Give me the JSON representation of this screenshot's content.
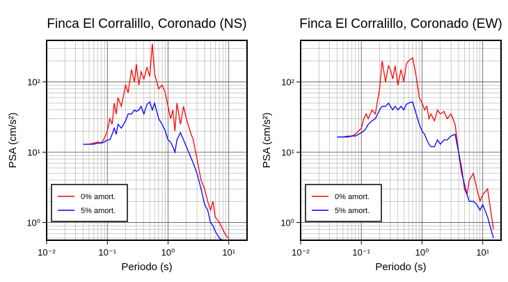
{
  "chart_data": [
    {
      "type": "line",
      "title": "Finca El Corralillo, Coronado (NS)",
      "x_label": "Periodo (s)",
      "y_label": "PSA (cm/s²)",
      "x_scale": "log",
      "y_scale": "log",
      "grid": true,
      "minor_grid": true,
      "legend": "lower left",
      "xlim": [
        0.01,
        20
      ],
      "ylim": [
        0.56,
        390
      ],
      "xticks": [
        {
          "value": 0.01,
          "label": "10⁻²"
        },
        {
          "value": 0.1,
          "label": "10⁻¹"
        },
        {
          "value": 1,
          "label": "10⁰"
        },
        {
          "value": 10,
          "label": "10¹"
        }
      ],
      "yticks": [
        {
          "value": 1,
          "label": "10⁰"
        },
        {
          "value": 10,
          "label": "10¹"
        },
        {
          "value": 100,
          "label": "10²"
        }
      ],
      "x": [
        0.04,
        0.05,
        0.06,
        0.07,
        0.08,
        0.09,
        0.1,
        0.11,
        0.12,
        0.13,
        0.14,
        0.15,
        0.17,
        0.2,
        0.22,
        0.25,
        0.28,
        0.3,
        0.33,
        0.36,
        0.4,
        0.45,
        0.5,
        0.55,
        0.6,
        0.7,
        0.8,
        0.9,
        1.0,
        1.1,
        1.2,
        1.3,
        1.4,
        1.6,
        1.8,
        2.0,
        2.3,
        2.6,
        3.0,
        3.5,
        4,
        4.5,
        5,
        5.5,
        6,
        7,
        8,
        9,
        10
      ],
      "series": [
        {
          "name": "0% amort.",
          "color": "#ff0000",
          "values": [
            13,
            13,
            13.5,
            14,
            13.5,
            16,
            20,
            30,
            25,
            50,
            35,
            60,
            45,
            90,
            70,
            150,
            100,
            180,
            90,
            140,
            110,
            160,
            120,
            350,
            130,
            80,
            90,
            70,
            45,
            30,
            40,
            20,
            50,
            25,
            45,
            30,
            20,
            15,
            8,
            4,
            3,
            2,
            1.5,
            2,
            1.2,
            1,
            0.8,
            0.65,
            0.6
          ]
        },
        {
          "name": "5% amort.",
          "color": "#0000ff",
          "values": [
            13,
            13,
            13,
            13.5,
            13.5,
            14,
            15,
            15,
            18,
            22,
            18,
            25,
            22,
            28,
            35,
            35,
            40,
            38,
            40,
            45,
            35,
            48,
            52,
            40,
            50,
            30,
            25,
            20,
            15,
            14,
            12,
            10,
            15,
            19,
            15,
            12,
            9,
            7,
            5,
            3,
            1.8,
            1.5,
            1.0,
            0.9,
            0.75,
            0.6,
            0.55,
            0.5,
            0.5
          ]
        }
      ]
    },
    {
      "type": "line",
      "title": "Finca El Corralillo, Coronado (EW)",
      "x_label": "Periodo (s)",
      "y_label": "PSA (cm/s²)",
      "x_scale": "log",
      "y_scale": "log",
      "grid": true,
      "minor_grid": true,
      "legend": "lower left",
      "xlim": [
        0.01,
        20
      ],
      "ylim": [
        0.56,
        390
      ],
      "xticks": [
        {
          "value": 0.01,
          "label": "10⁻²"
        },
        {
          "value": 0.1,
          "label": "10⁻¹"
        },
        {
          "value": 1,
          "label": "10⁰"
        },
        {
          "value": 10,
          "label": "10¹"
        }
      ],
      "yticks": [
        {
          "value": 1,
          "label": "10⁰"
        },
        {
          "value": 10,
          "label": "10¹"
        },
        {
          "value": 100,
          "label": "10²"
        }
      ],
      "x": [
        0.04,
        0.05,
        0.06,
        0.07,
        0.08,
        0.09,
        0.1,
        0.11,
        0.12,
        0.13,
        0.15,
        0.17,
        0.2,
        0.22,
        0.25,
        0.28,
        0.3,
        0.33,
        0.36,
        0.4,
        0.45,
        0.5,
        0.55,
        0.6,
        0.7,
        0.8,
        0.9,
        1.0,
        1.1,
        1.2,
        1.3,
        1.4,
        1.6,
        1.8,
        2.0,
        2.3,
        2.6,
        3.0,
        3.5,
        4,
        4.5,
        5,
        5.5,
        6,
        7,
        8,
        9,
        10,
        12,
        15
      ],
      "series": [
        {
          "name": "0% amort.",
          "color": "#ff0000",
          "values": [
            16.5,
            16.5,
            17,
            17,
            18,
            20,
            22,
            30,
            35,
            30,
            40,
            35,
            80,
            200,
            100,
            170,
            150,
            110,
            170,
            90,
            150,
            100,
            180,
            200,
            220,
            120,
            60,
            50,
            40,
            45,
            30,
            35,
            28,
            40,
            35,
            38,
            30,
            35,
            25,
            10,
            6,
            3,
            2.5,
            4,
            5,
            3,
            2,
            2.5,
            3,
            0.8
          ]
        },
        {
          "name": "5% amort.",
          "color": "#0000ff",
          "values": [
            16.5,
            16.5,
            16.5,
            17,
            17,
            18,
            19,
            20,
            22,
            25,
            28,
            30,
            40,
            45,
            45,
            50,
            45,
            40,
            45,
            40,
            45,
            40,
            48,
            50,
            52,
            35,
            25,
            20,
            18,
            15,
            13,
            12,
            12,
            15,
            13,
            15,
            15,
            17,
            18,
            10,
            5,
            3.5,
            2.5,
            2,
            2,
            1.8,
            1.5,
            1.8,
            1.2,
            0.6
          ]
        }
      ]
    }
  ]
}
